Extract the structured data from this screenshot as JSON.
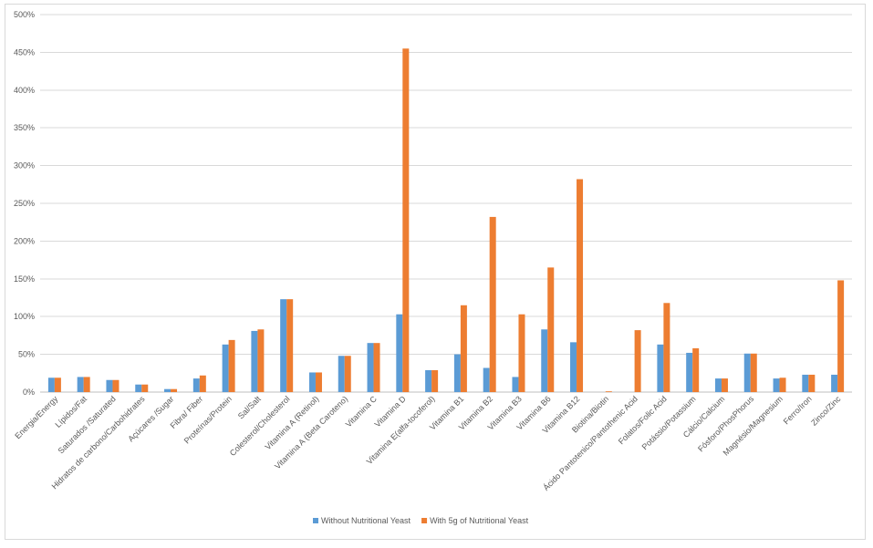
{
  "chart_data": {
    "type": "bar",
    "title": "",
    "xlabel": "",
    "ylabel": "",
    "ylim": [
      0,
      500
    ],
    "y_tick_step": 50,
    "y_tick_suffix": "%",
    "grid": true,
    "legend_position": "bottom",
    "categories": [
      "Energia/Energy",
      "Lípidos/Fat",
      "Saturados /Saturated",
      "Hidratos de carbono/Carbohidrates",
      "Açúcares /Sugar",
      "Fibra/ Fiber",
      "Proteínas/Protein",
      "Sal/Salt",
      "Colesterol/Cholesterol",
      "Vitamina A (Retinol)",
      "Vitamina A (Beta Caroteno)",
      "Vitamina C",
      "Vitamina D",
      "Vitamina E(alfa-tocoferol)",
      "Vitamina B1",
      "Vitamina B2",
      "Vitamina B3",
      "Vitamina B6",
      "Vitamina B12",
      "Biotina/Biotin",
      "Ácido Pantotenico/Pantothenic Acid",
      "Folatos/Folic Acid",
      "Potássio/Potassium",
      "Cálcio/Calcium",
      "Fósforo/PhosPhorus",
      "Magnésio/Magnesium",
      "Ferro/Iron",
      "Zinco/Zinc"
    ],
    "series": [
      {
        "name": "Without Nutritional Yeast",
        "color": "#5b9bd5",
        "values": [
          19,
          20,
          16,
          10,
          4,
          18,
          63,
          81,
          123,
          26,
          48,
          65,
          103,
          29,
          50,
          32,
          20,
          83,
          66,
          0,
          0,
          63,
          52,
          18,
          51,
          18,
          23,
          23
        ]
      },
      {
        "name": "With 5g of Nutritional Yeast",
        "color": "#ed7d31",
        "values": [
          19,
          20,
          16,
          10,
          4,
          22,
          69,
          83,
          123,
          26,
          48,
          65,
          455,
          29,
          115,
          232,
          103,
          165,
          282,
          1,
          82,
          118,
          58,
          18,
          51,
          19,
          23,
          148
        ]
      }
    ]
  }
}
